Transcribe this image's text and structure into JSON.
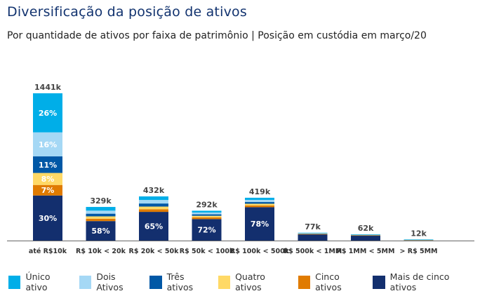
{
  "title": "Diversificação da posição de ativos",
  "subtitle": "Por quantidade de ativos por faixa de patrimônio | Posição em custódia em março/20",
  "chart_data": {
    "type": "bar",
    "stacked": true,
    "title": "Diversificação da posição de ativos",
    "subtitle": "Por quantidade de ativos por faixa de patrimônio | Posição em custódia em março/20",
    "xlabel": "",
    "ylabel": "",
    "ylim": [
      0,
      1441
    ],
    "grid": false,
    "legend_position": "bottom",
    "categories": [
      "até R$10k",
      "R$ 10k < 20k",
      "R$ 20k < 50k",
      "R$ 50k < 100k",
      "R$ 100k < 500k",
      "R$ 500k < 1MM",
      "R$ 1MM < 5MM",
      "> R$ 5MM"
    ],
    "totals": [
      1441,
      329,
      432,
      292,
      419,
      77,
      62,
      12
    ],
    "total_labels": [
      "1441k",
      "329k",
      "432k",
      "292k",
      "419k",
      "77k",
      "62k",
      "12k"
    ],
    "series": [
      {
        "name": "Mais de cinco ativos",
        "color": "#132f6e",
        "values_pct": [
          30,
          58,
          65,
          72,
          78,
          80,
          80,
          20
        ],
        "labels": [
          "30%",
          "58%",
          "65%",
          "72%",
          "78%",
          "",
          "",
          ""
        ]
      },
      {
        "name": "Cinco ativos",
        "color": "#e07b00",
        "values_pct": [
          7,
          7,
          6,
          6,
          4,
          3,
          3,
          10
        ],
        "labels": [
          "7%",
          "",
          "",
          "",
          "",
          "",
          "",
          ""
        ]
      },
      {
        "name": "Quatro ativos",
        "color": "#ffd966",
        "values_pct": [
          8,
          7,
          6,
          5,
          4,
          6,
          4,
          20
        ],
        "labels": [
          "8%",
          "",
          "",
          "",
          "",
          "",
          "",
          ""
        ]
      },
      {
        "name": "Três ativos",
        "color": "#0058a6",
        "values_pct": [
          11,
          8,
          7,
          5,
          4,
          3,
          5,
          10
        ],
        "labels": [
          "11%",
          "",
          "",
          "",
          "",
          "",
          "",
          ""
        ]
      },
      {
        "name": "Dois Ativos",
        "color": "#a5d8f5",
        "values_pct": [
          16,
          9,
          8,
          6,
          5,
          3,
          4,
          10
        ],
        "labels": [
          "16%",
          "",
          "",
          "",
          "",
          "",
          "",
          ""
        ]
      },
      {
        "name": "Único ativo",
        "color": "#00aee8",
        "values_pct": [
          26,
          11,
          8,
          6,
          5,
          5,
          4,
          30
        ],
        "labels": [
          "26%",
          "",
          "",
          "",
          "",
          "",
          "",
          ""
        ]
      }
    ]
  },
  "legend": [
    {
      "label": "Único ativo",
      "color": "#00aee8"
    },
    {
      "label": "Dois Ativos",
      "color": "#a5d8f5"
    },
    {
      "label": "Três ativos",
      "color": "#0058a6"
    },
    {
      "label": "Quatro ativos",
      "color": "#ffd966"
    },
    {
      "label": "Cinco ativos",
      "color": "#e07b00"
    },
    {
      "label": "Mais de cinco ativos",
      "color": "#132f6e"
    }
  ]
}
